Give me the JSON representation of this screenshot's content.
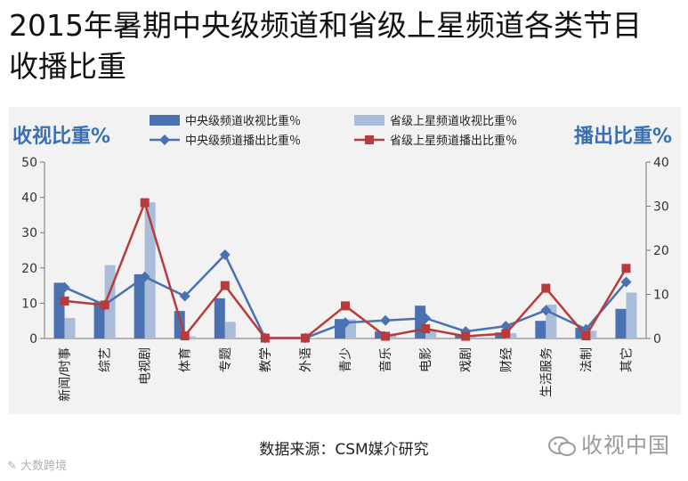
{
  "page": {
    "title_line1": "2015年暑期中央级频道和省级上星频道各类节目",
    "title_line2": "收播比重",
    "source": "数据来源：CSM媒介研究",
    "watermark_right": "收视中国",
    "watermark_left": "大数跨境"
  },
  "chart_data": {
    "type": "bar",
    "left_axis_title": "收视比重%",
    "right_axis_title": "播出比重%",
    "categories": [
      "新闻/时事",
      "综艺",
      "电视剧",
      "体育",
      "专题",
      "教学",
      "外语",
      "青少",
      "音乐",
      "电影",
      "戏剧",
      "财经",
      "生活服务",
      "法制",
      "其它"
    ],
    "ylim_left": [
      0,
      50
    ],
    "yticks_left": [
      0,
      10,
      20,
      30,
      40,
      50
    ],
    "ylim_right": [
      0,
      40
    ],
    "yticks_right": [
      0,
      10,
      20,
      30,
      40
    ],
    "grid": false,
    "legend_position": "top",
    "bars": [
      {
        "name": "中央级频道收视比重％",
        "axis": "left",
        "color": "#4a72b0",
        "values": [
          15.8,
          10.3,
          18.2,
          7.8,
          11.4,
          0.1,
          0.1,
          5.5,
          2.0,
          9.3,
          1.0,
          1.7,
          5.0,
          3.0,
          8.4
        ]
      },
      {
        "name": "省级上星频道收视比重％",
        "axis": "left",
        "color": "#a9bddb",
        "values": [
          5.8,
          20.8,
          38.6,
          0.6,
          4.7,
          0.1,
          0.1,
          5.4,
          1.4,
          2.2,
          0.5,
          1.5,
          9.6,
          2.2,
          13.0
        ]
      }
    ],
    "lines": [
      {
        "name": "中央级频道播出比重％",
        "axis": "right",
        "color": "#4a72b0",
        "marker": "diamond",
        "values": [
          11.6,
          7.6,
          14.0,
          9.6,
          19.0,
          0.1,
          0.1,
          3.6,
          4.1,
          4.6,
          1.6,
          2.8,
          6.4,
          2.1,
          12.8
        ]
      },
      {
        "name": "省级上星频道播出比重％",
        "axis": "right",
        "color": "#b83a3a",
        "marker": "square",
        "values": [
          8.5,
          7.6,
          30.8,
          0.6,
          12.0,
          0.1,
          0.1,
          7.4,
          0.5,
          2.2,
          0.5,
          1.1,
          11.4,
          0.6,
          15.9
        ]
      }
    ]
  }
}
